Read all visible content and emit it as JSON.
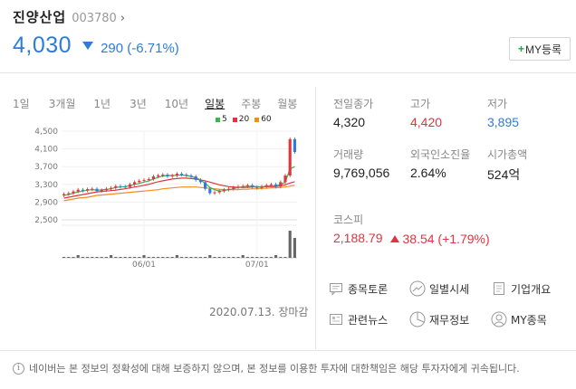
{
  "stock": {
    "name": "진양산업",
    "code": "003780",
    "price": "4,030",
    "change": "290 (-6.71%)",
    "my_button": "MY등록"
  },
  "period_tabs": [
    {
      "label": "1일",
      "active": false
    },
    {
      "label": "3개월",
      "active": false
    },
    {
      "label": "1년",
      "active": false
    },
    {
      "label": "3년",
      "active": false
    },
    {
      "label": "10년",
      "active": false
    },
    {
      "label": "일봉",
      "active": true
    },
    {
      "label": "주봉",
      "active": false
    },
    {
      "label": "월봉",
      "active": false
    }
  ],
  "chart_meta": {
    "date_note": "2020.07.13. 장마감"
  },
  "chart_data": {
    "type": "line",
    "title": "",
    "y_ticks": [
      "4,500",
      "4,100",
      "3,700",
      "3,300",
      "2,900",
      "2,500"
    ],
    "x_ticks": [
      "06/01",
      "07/01"
    ],
    "ylim": [
      2500,
      4500
    ],
    "legend": [
      {
        "name": "5",
        "color": "#3cb44b"
      },
      {
        "name": "20",
        "color": "#e0343e"
      },
      {
        "name": "60",
        "color": "#f28c1c"
      }
    ],
    "legend_placement": "top-right",
    "price_close": [
      3080,
      3100,
      3140,
      3180,
      3160,
      3190,
      3200,
      3150,
      3170,
      3200,
      3220,
      3260,
      3250,
      3240,
      3300,
      3350,
      3380,
      3400,
      3420,
      3480,
      3500,
      3520,
      3480,
      3500,
      3540,
      3520,
      3500,
      3480,
      3400,
      3350,
      3200,
      3100,
      3120,
      3150,
      3180,
      3200,
      3230,
      3250,
      3260,
      3280,
      3240,
      3220,
      3250,
      3280,
      3300,
      3250,
      3350,
      3500,
      4320,
      4030
    ],
    "ma5": [
      3050,
      3070,
      3100,
      3130,
      3150,
      3170,
      3180,
      3170,
      3175,
      3185,
      3200,
      3230,
      3240,
      3250,
      3270,
      3300,
      3320,
      3350,
      3380,
      3420,
      3460,
      3490,
      3500,
      3500,
      3505,
      3510,
      3500,
      3480,
      3450,
      3400,
      3320,
      3230,
      3180,
      3150,
      3160,
      3180,
      3200,
      3230,
      3250,
      3260,
      3260,
      3250,
      3250,
      3260,
      3270,
      3270,
      3290,
      3350,
      3650,
      3700
    ],
    "ma20": [
      2990,
      3010,
      3030,
      3050,
      3070,
      3090,
      3110,
      3130,
      3140,
      3150,
      3160,
      3170,
      3185,
      3200,
      3220,
      3240,
      3260,
      3280,
      3300,
      3330,
      3360,
      3380,
      3400,
      3420,
      3430,
      3440,
      3440,
      3430,
      3420,
      3400,
      3380,
      3350,
      3320,
      3290,
      3270,
      3250,
      3240,
      3230,
      3230,
      3230,
      3240,
      3240,
      3240,
      3250,
      3250,
      3250,
      3270,
      3290,
      3330,
      3360
    ],
    "ma60": [
      2930,
      2950,
      2970,
      2990,
      3000,
      3010,
      3030,
      3050,
      3060,
      3070,
      3080,
      3090,
      3100,
      3110,
      3120,
      3130,
      3140,
      3150,
      3160,
      3170,
      3180,
      3200,
      3210,
      3220,
      3230,
      3240,
      3240,
      3240,
      3240,
      3230,
      3220,
      3210,
      3200,
      3190,
      3180,
      3180,
      3180,
      3180,
      3190,
      3190,
      3200,
      3200,
      3210,
      3210,
      3220,
      3220,
      3230,
      3240,
      3260,
      3280
    ],
    "volume_note": "volume spikes at the last two sessions"
  },
  "stats": {
    "prev_close_label": "전일종가",
    "prev_close": "4,320",
    "high_label": "고가",
    "high": "4,420",
    "low_label": "저가",
    "low": "3,895",
    "volume_label": "거래량",
    "volume": "9,769,056",
    "foreign_label": "외국인소진율",
    "foreign": "2.64%",
    "market_cap_label": "시가총액",
    "market_cap": "524억"
  },
  "index": {
    "label": "코스피",
    "value": "2,188.79",
    "change": "38.54 (+1.79%)"
  },
  "links": [
    {
      "label": "종목토론",
      "icon": "chat-icon"
    },
    {
      "label": "일별시세",
      "icon": "trend-icon"
    },
    {
      "label": "기업개요",
      "icon": "document-icon"
    },
    {
      "label": "관련뉴스",
      "icon": "news-icon"
    },
    {
      "label": "재무정보",
      "icon": "pie-icon"
    },
    {
      "label": "MY종목",
      "icon": "user-icon"
    }
  ],
  "notice": "네이버는 본 정보의 정확성에 대해 보증하지 않으며, 본 정보를 이용한 투자에 대한책임은 해당 투자자에게 귀속됩니다.",
  "colors": {
    "down": "#2e7bd9",
    "up": "#e0343e",
    "ma5": "#3cb44b",
    "ma20": "#e0343e",
    "ma60": "#f28c1c"
  }
}
